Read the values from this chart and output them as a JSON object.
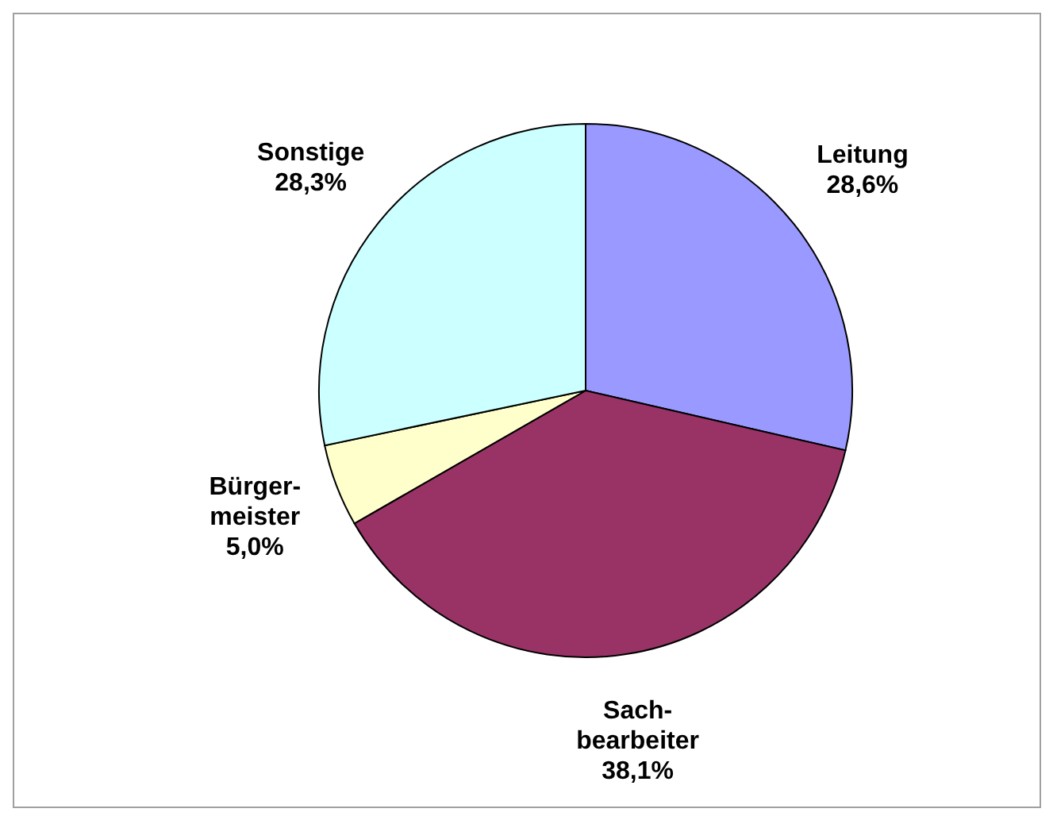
{
  "chart_data": {
    "type": "pie",
    "categories": [
      "Leitung",
      "Sach-\nbearbeiter",
      "Bürger-\nmeister",
      "Sonstige"
    ],
    "values": [
      28.6,
      38.1,
      5.0,
      28.3
    ],
    "colors": [
      "#9999ff",
      "#993366",
      "#ffffcc",
      "#ccffff"
    ],
    "value_labels": [
      "28,6%",
      "38,1%",
      "5,0%",
      "28,3%"
    ],
    "legend": false
  }
}
